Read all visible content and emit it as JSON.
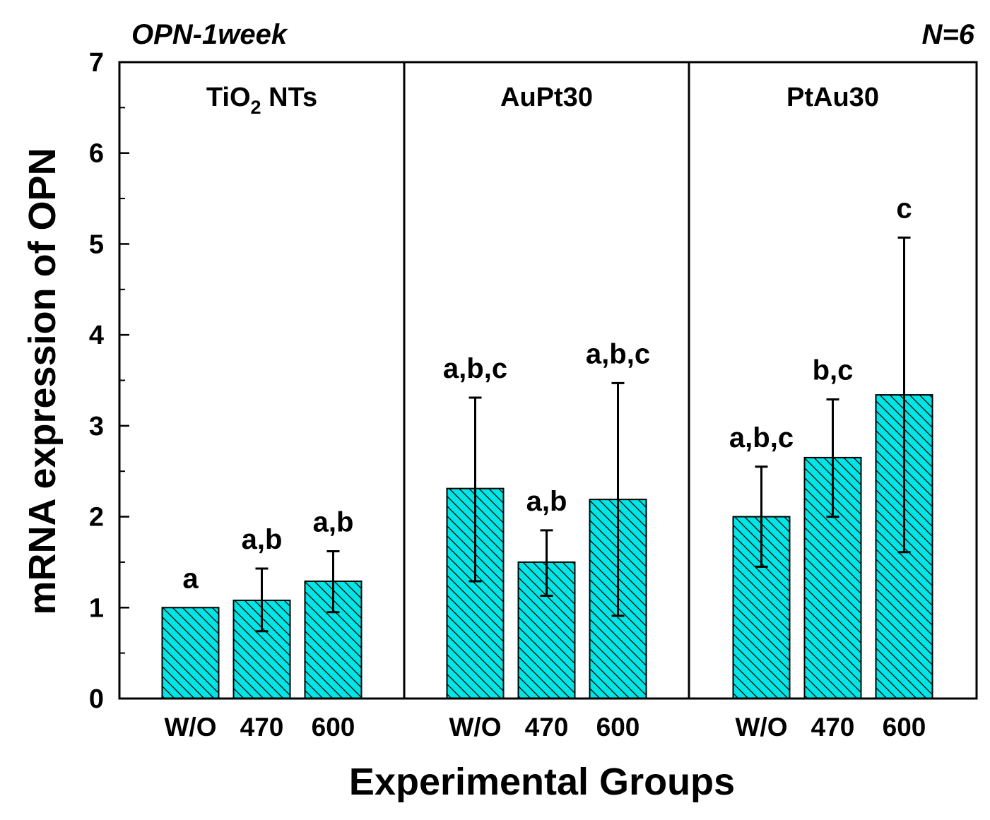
{
  "chart_data": {
    "type": "bar",
    "title_left": "OPN-1week",
    "title_right": "N=6",
    "ylabel": "mRNA expression of OPN",
    "xlabel": "Experimental Groups",
    "ylim": [
      0,
      7
    ],
    "yticks": [
      "0",
      "1",
      "2",
      "3",
      "4",
      "5",
      "6",
      "7"
    ],
    "bar_color": "#00e5e5",
    "panels": [
      {
        "name_main": "TiO",
        "name_sub": "2",
        "name_tail": " NTs",
        "categories": [
          "W/O",
          "470",
          "600"
        ],
        "values": [
          1.0,
          1.08,
          1.29
        ],
        "err_low": [
          1.0,
          0.74,
          0.95
        ],
        "err_high": [
          1.0,
          1.43,
          1.62
        ],
        "sig": [
          "a",
          "a,b",
          "a,b"
        ]
      },
      {
        "name_main": "AuPt30",
        "name_sub": "",
        "name_tail": "",
        "categories": [
          "W/O",
          "470",
          "600"
        ],
        "values": [
          2.31,
          1.5,
          2.19
        ],
        "err_low": [
          1.29,
          1.13,
          0.91
        ],
        "err_high": [
          3.31,
          1.85,
          3.47
        ],
        "sig": [
          "a,b,c",
          "a,b",
          "a,b,c"
        ]
      },
      {
        "name_main": "PtAu30",
        "name_sub": "",
        "name_tail": "",
        "categories": [
          "W/O",
          "470",
          "600"
        ],
        "values": [
          2.0,
          2.65,
          3.34
        ],
        "err_low": [
          1.45,
          2.0,
          1.61
        ],
        "err_high": [
          2.55,
          3.29,
          5.07
        ],
        "sig": [
          "a,b,c",
          "b,c",
          "c"
        ]
      }
    ]
  }
}
